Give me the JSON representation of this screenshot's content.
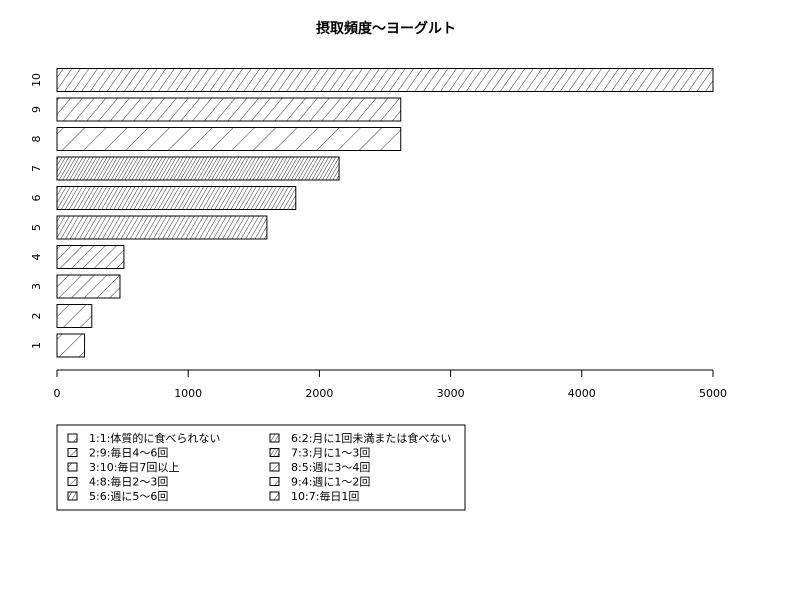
{
  "chart_data": {
    "type": "bar",
    "orientation": "horizontal",
    "title": "摂取頻度〜ヨーグルト",
    "xlabel": "",
    "ylabel": "",
    "categories": [
      "1",
      "2",
      "3",
      "4",
      "5",
      "6",
      "7",
      "8",
      "9",
      "10"
    ],
    "values": [
      210,
      265,
      480,
      510,
      1600,
      1820,
      2150,
      2620,
      2620,
      5000
    ],
    "xlim": [
      0,
      5000
    ],
    "x_ticks": [
      "0",
      "1000",
      "2000",
      "3000",
      "4000",
      "5000"
    ],
    "grid": false,
    "legend_position": "bottom-left",
    "legend": [
      "1:1:体質的に食べられない",
      "2:9:毎日4〜6回",
      "3:10:毎日7回以上",
      "4:8:毎日2〜3回",
      "5:6:週に5〜6回",
      "6:2:月に1回未満または食べない",
      "7:3:月に1〜3回",
      "8:5:週に3〜4回",
      "9:4:週に1〜2回",
      "10:7:毎日1回"
    ],
    "colors": {
      "bar_fill": "#ffffff",
      "stroke": "#000000"
    }
  }
}
